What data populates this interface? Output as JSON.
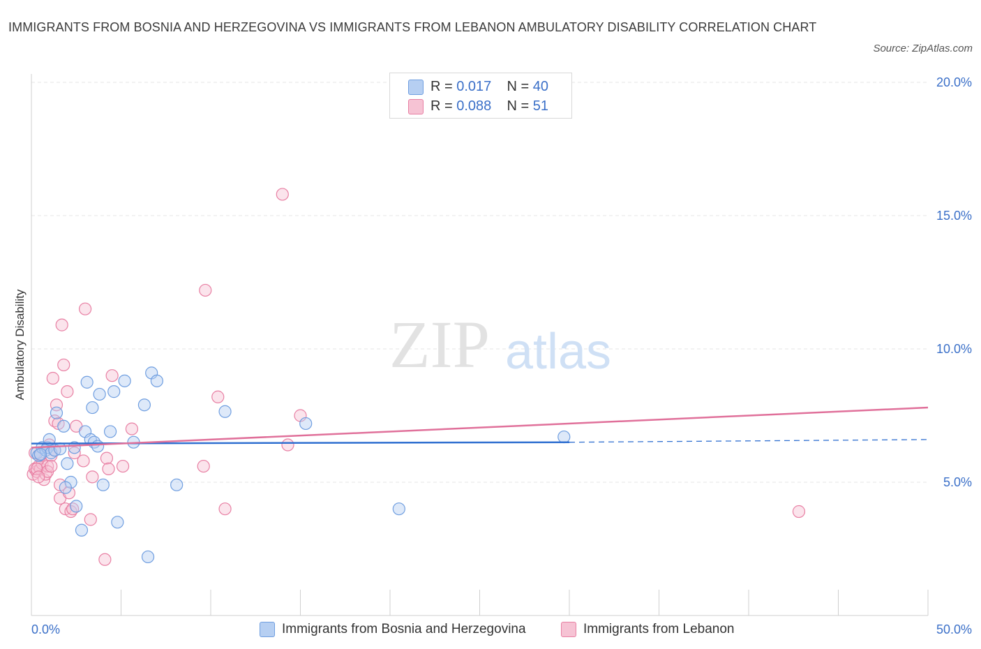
{
  "header": {
    "title": "IMMIGRANTS FROM BOSNIA AND HERZEGOVINA VS IMMIGRANTS FROM LEBANON AMBULATORY DISABILITY CORRELATION CHART",
    "source": "Source: ZipAtlas.com"
  },
  "watermark": {
    "zip": "ZIP",
    "atlas": "atlas"
  },
  "colors": {
    "blue": "#6f9ee0",
    "blue_fill": "#b6cff2",
    "blue_line": "#2f6fd0",
    "pink": "#e87fa3",
    "pink_fill": "#f6c3d4",
    "pink_line": "#e0709a",
    "axis_text": "#3a6fc8"
  },
  "legend": {
    "rows": [
      {
        "r_label": "R = ",
        "r_value": "0.017",
        "n_label": "N = ",
        "n_value": "40"
      },
      {
        "r_label": "R = ",
        "r_value": "0.088",
        "n_label": "N = ",
        "n_value": "51"
      }
    ]
  },
  "chart_data": {
    "type": "scatter",
    "title": "IMMIGRANTS FROM BOSNIA AND HERZEGOVINA VS IMMIGRANTS FROM LEBANON AMBULATORY DISABILITY CORRELATION CHART",
    "xlabel": "",
    "ylabel": "Ambulatory Disability",
    "xlim": [
      0,
      50
    ],
    "ylim": [
      0,
      20
    ],
    "x_tick_labels": [
      "0.0%",
      "50.0%"
    ],
    "y_ticks": [
      5,
      10,
      15,
      20
    ],
    "y_tick_labels": [
      "5.0%",
      "10.0%",
      "15.0%",
      "20.0%"
    ],
    "grid": true,
    "legend_position": "top-center",
    "series": [
      {
        "name": "Immigrants from Bosnia and Herzegovina",
        "color": "blue",
        "r": 0.017,
        "n": 40,
        "trend": {
          "x": [
            0,
            30
          ],
          "y": [
            6.45,
            6.5
          ],
          "dash_to": [
            50,
            6.6
          ]
        },
        "points": [
          [
            0.3,
            6.1
          ],
          [
            0.4,
            6.0
          ],
          [
            0.6,
            6.3
          ],
          [
            0.8,
            6.2
          ],
          [
            0.9,
            6.3
          ],
          [
            1.0,
            6.6
          ],
          [
            1.1,
            6.1
          ],
          [
            1.3,
            6.2
          ],
          [
            1.4,
            7.6
          ],
          [
            1.6,
            6.25
          ],
          [
            1.8,
            7.1
          ],
          [
            2.0,
            5.7
          ],
          [
            2.2,
            5.0
          ],
          [
            2.4,
            6.3
          ],
          [
            2.5,
            4.1
          ],
          [
            2.8,
            3.2
          ],
          [
            3.0,
            6.9
          ],
          [
            3.1,
            8.75
          ],
          [
            3.3,
            6.6
          ],
          [
            3.4,
            7.8
          ],
          [
            3.5,
            6.5
          ],
          [
            3.7,
            6.35
          ],
          [
            3.8,
            8.3
          ],
          [
            4.0,
            4.9
          ],
          [
            4.4,
            6.9
          ],
          [
            4.6,
            8.4
          ],
          [
            4.8,
            3.5
          ],
          [
            5.2,
            8.8
          ],
          [
            5.7,
            6.5
          ],
          [
            6.3,
            7.9
          ],
          [
            6.5,
            2.2
          ],
          [
            6.7,
            9.1
          ],
          [
            7.0,
            8.8
          ],
          [
            8.1,
            4.9
          ],
          [
            10.8,
            7.65
          ],
          [
            15.3,
            7.2
          ],
          [
            20.5,
            4.0
          ],
          [
            29.7,
            6.7
          ],
          [
            1.9,
            4.8
          ],
          [
            0.5,
            6.05
          ]
        ]
      },
      {
        "name": "Immigrants from Lebanon",
        "color": "pink",
        "r": 0.088,
        "n": 51,
        "trend": {
          "x": [
            0,
            50
          ],
          "y": [
            6.3,
            7.8
          ]
        },
        "points": [
          [
            0.1,
            5.3
          ],
          [
            0.2,
            5.5
          ],
          [
            0.3,
            5.4
          ],
          [
            0.4,
            5.6
          ],
          [
            0.5,
            5.5
          ],
          [
            0.6,
            5.7
          ],
          [
            0.7,
            5.1
          ],
          [
            0.8,
            5.3
          ],
          [
            0.9,
            5.6
          ],
          [
            1.0,
            6.4
          ],
          [
            1.1,
            6.0
          ],
          [
            1.2,
            8.9
          ],
          [
            1.3,
            7.3
          ],
          [
            1.4,
            7.9
          ],
          [
            1.5,
            7.2
          ],
          [
            1.6,
            4.9
          ],
          [
            1.6,
            4.4
          ],
          [
            1.7,
            10.9
          ],
          [
            1.8,
            9.4
          ],
          [
            1.9,
            4.0
          ],
          [
            2.0,
            8.4
          ],
          [
            2.1,
            4.6
          ],
          [
            2.2,
            3.9
          ],
          [
            2.3,
            4.0
          ],
          [
            2.5,
            7.1
          ],
          [
            2.9,
            5.8
          ],
          [
            3.0,
            11.5
          ],
          [
            3.3,
            3.6
          ],
          [
            3.4,
            5.2
          ],
          [
            4.1,
            2.1
          ],
          [
            4.2,
            5.9
          ],
          [
            4.3,
            5.5
          ],
          [
            4.5,
            9.0
          ],
          [
            5.1,
            5.6
          ],
          [
            5.6,
            7.0
          ],
          [
            9.6,
            5.6
          ],
          [
            9.7,
            12.2
          ],
          [
            10.4,
            8.2
          ],
          [
            10.8,
            4.0
          ],
          [
            14.0,
            15.8
          ],
          [
            14.3,
            6.4
          ],
          [
            15.0,
            7.5
          ],
          [
            42.8,
            3.9
          ],
          [
            0.3,
            5.5
          ],
          [
            0.5,
            6.0
          ],
          [
            0.9,
            5.4
          ],
          [
            1.1,
            5.6
          ],
          [
            1.3,
            6.2
          ],
          [
            2.4,
            6.1
          ],
          [
            0.2,
            6.1
          ],
          [
            0.4,
            5.2
          ]
        ]
      }
    ]
  }
}
